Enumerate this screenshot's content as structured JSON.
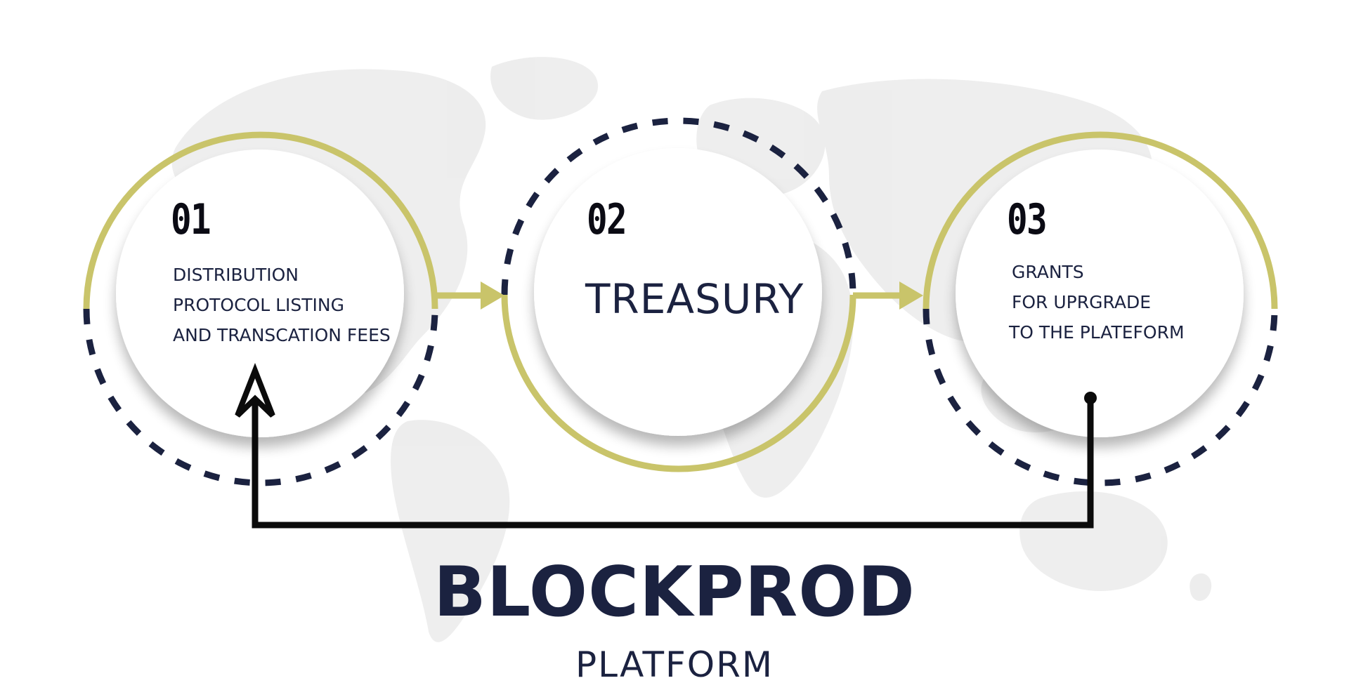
{
  "steps": [
    {
      "number": "01",
      "lines": [
        "DISTRIBUTION",
        "PROTOCOL LISTING",
        "AND TRANSCATION FEES"
      ]
    },
    {
      "number": "02",
      "title": "TREASURY"
    },
    {
      "number": "03",
      "lines": [
        "GRANTS",
        "FOR UPRGRADE",
        "TO THE PLATEFORM"
      ]
    }
  ],
  "brand": {
    "title": "BLOCKPROD",
    "subtitle": "PLATFORM"
  },
  "colors": {
    "gold": "#c9c46a",
    "navy": "#1b2240",
    "arrow": "#0b0b0b",
    "map": "#ececec"
  },
  "icons": {
    "background": "world-map-icon",
    "flow_arrow": "right-arrow-icon",
    "return_arrow": "up-arrow-icon"
  }
}
